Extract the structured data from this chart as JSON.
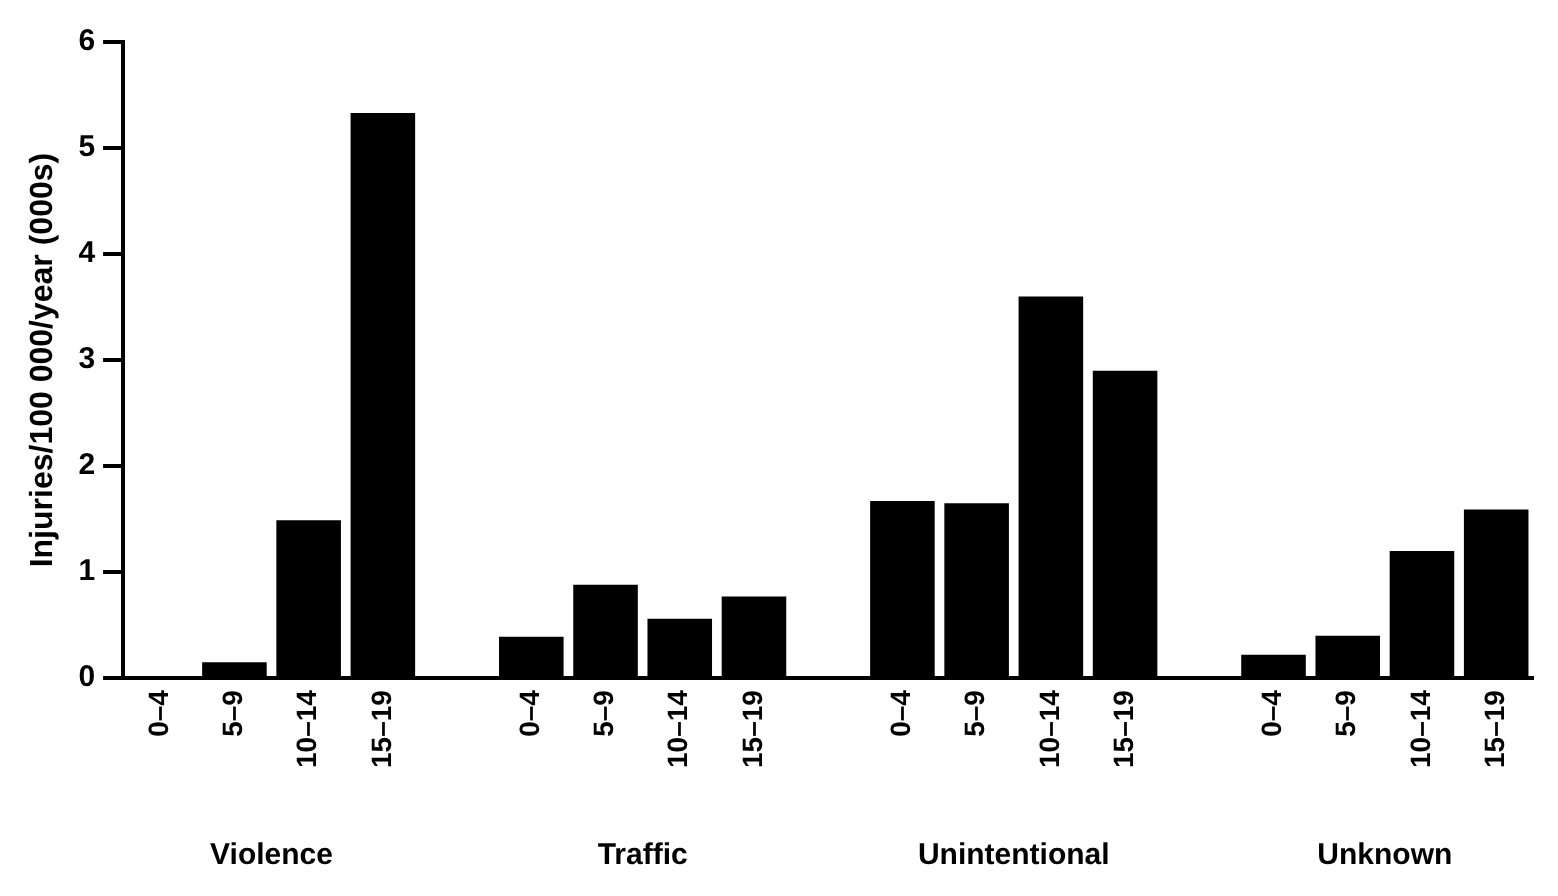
{
  "chart_data": {
    "type": "bar",
    "ylabel": "Injuries/100 000/year (000s)",
    "categories": [
      "0–4",
      "5–9",
      "10–14",
      "15–19",
      null,
      "0–4",
      "5–9",
      "10–14",
      "15–19",
      null,
      "0–4",
      "5–9",
      "10–14",
      "15–19",
      null,
      "0–4",
      "5–9",
      "10–14",
      "15–19"
    ],
    "values": [
      0,
      0.15,
      1.49,
      5.33,
      null,
      0.39,
      0.88,
      0.56,
      0.77,
      null,
      1.67,
      1.65,
      3.6,
      2.9,
      null,
      0.22,
      0.4,
      1.2,
      1.59
    ],
    "color": "#000000",
    "ylim": [
      0,
      6
    ],
    "yticks": [
      0,
      1,
      2,
      3,
      4,
      5,
      6
    ],
    "grid": false,
    "legend": false,
    "annotations": [
      "Violence",
      "Traffic",
      "Unintentional",
      "Unknown"
    ]
  }
}
